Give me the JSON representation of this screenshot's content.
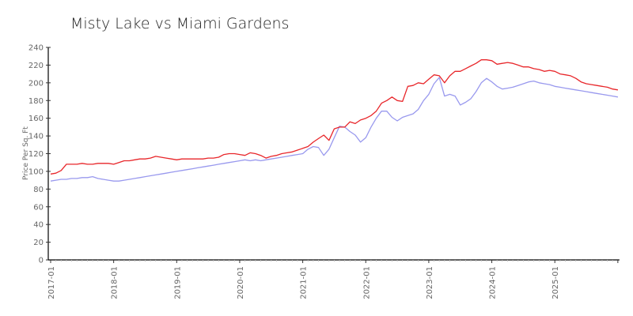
{
  "chart_data": {
    "type": "line",
    "title": "Misty Lake vs Miami Gardens",
    "xlabel": "",
    "ylabel": "Price Per Sq. Ft",
    "ylim": [
      0,
      240
    ],
    "yticks": [
      0,
      20,
      40,
      60,
      80,
      100,
      120,
      140,
      160,
      180,
      200,
      220,
      240
    ],
    "xticks": [
      "2017-01",
      "2018-01",
      "2019-01",
      "2020-01",
      "2021-01",
      "2022-01",
      "2023-01",
      "2024-01",
      "2025-01"
    ],
    "grid": false,
    "legend": "none",
    "x_start": "2017-01",
    "x_end": "2025-11",
    "series": [
      {
        "name": "Misty Lake",
        "color": "#e8262a",
        "values": [
          97,
          98,
          101,
          108,
          108,
          108,
          109,
          108,
          108,
          109,
          109,
          109,
          108,
          110,
          112,
          112,
          113,
          114,
          114,
          115,
          117,
          116,
          115,
          114,
          113,
          114,
          114,
          114,
          114,
          114,
          115,
          115,
          116,
          119,
          120,
          120,
          119,
          118,
          121,
          120,
          118,
          115,
          117,
          118,
          120,
          121,
          122,
          124,
          126,
          128,
          133,
          137,
          141,
          135,
          148,
          150,
          150,
          156,
          154,
          158,
          160,
          163,
          168,
          177,
          180,
          184,
          180,
          179,
          196,
          197,
          200,
          199,
          204,
          209,
          208,
          200,
          208,
          213,
          213,
          216,
          219,
          222,
          226,
          226,
          225,
          221,
          222,
          223,
          222,
          220,
          218,
          218,
          216,
          215,
          213,
          214,
          213,
          210,
          209,
          208,
          205,
          201,
          199,
          198,
          197,
          196,
          195,
          193,
          192
        ]
      },
      {
        "name": "Miami Gardens",
        "color": "#9999ee",
        "values": [
          89,
          90,
          91,
          91,
          92,
          92,
          93,
          93,
          94,
          92,
          91,
          90,
          89,
          89,
          90,
          91,
          92,
          93,
          94,
          95,
          96,
          97,
          98,
          99,
          100,
          101,
          102,
          103,
          104,
          105,
          106,
          107,
          108,
          109,
          110,
          111,
          112,
          113,
          112,
          113,
          112,
          113,
          114,
          115,
          116,
          117,
          118,
          119,
          120,
          125,
          128,
          127,
          118,
          125,
          138,
          151,
          150,
          145,
          141,
          133,
          138,
          150,
          160,
          168,
          168,
          161,
          157,
          161,
          163,
          165,
          170,
          180,
          187,
          199,
          206,
          185,
          187,
          185,
          175,
          178,
          182,
          190,
          200,
          205,
          201,
          196,
          193,
          194,
          195,
          197,
          199,
          201,
          202,
          200,
          199,
          198,
          196,
          195,
          194,
          193,
          192,
          191,
          190,
          189,
          188,
          187,
          186,
          185,
          184
        ]
      }
    ]
  }
}
